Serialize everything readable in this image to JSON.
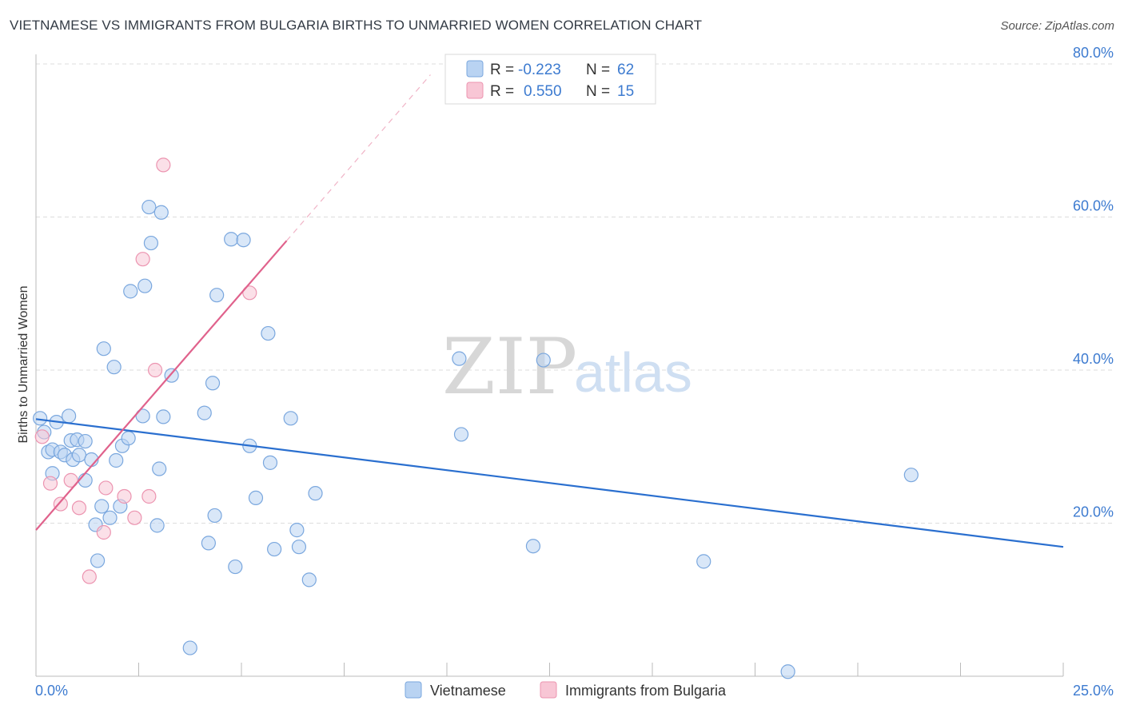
{
  "header": {
    "title": "VIETNAMESE VS IMMIGRANTS FROM BULGARIA BIRTHS TO UNMARRIED WOMEN CORRELATION CHART",
    "source": "Source: ZipAtlas.com"
  },
  "watermark": {
    "part1": "ZIP",
    "part2": "atlas"
  },
  "legend": {
    "r_label": "R =",
    "n_label": "N =",
    "rows": [
      {
        "r_value": "-0.223",
        "n_value": "62"
      },
      {
        "r_value": "0.550",
        "n_value": "15"
      }
    ]
  },
  "colors": {
    "vietnamese_fill": "#b9d3f2",
    "vietnamese_stroke": "#7aa7de",
    "vietnamese_line": "#2a6fcf",
    "bulgaria_fill": "#f8c6d5",
    "bulgaria_stroke": "#ec94b0",
    "bulgaria_line": "#e0628c",
    "grid": "#dddddd",
    "axis_text": "#3d7bd0"
  },
  "chart_data": {
    "type": "scatter",
    "title": "VIETNAMESE VS IMMIGRANTS FROM BULGARIA BIRTHS TO UNMARRIED WOMEN CORRELATION CHART",
    "xlabel": "",
    "ylabel": "Births to Unmarried Women",
    "xlim": [
      0,
      25
    ],
    "ylim": [
      0,
      80
    ],
    "x_tick_labels": [
      "0.0%",
      "25.0%"
    ],
    "y_ticks": [
      20,
      40,
      60,
      80
    ],
    "y_tick_labels": [
      "20.0%",
      "40.0%",
      "60.0%",
      "80.0%"
    ],
    "grid": true,
    "legend_position": "top-center",
    "series": [
      {
        "name": "Vietnamese",
        "r": -0.223,
        "n": 62,
        "trend": {
          "x0": 0,
          "y0": 33.6,
          "x1": 25,
          "y1": 16.9
        },
        "points": [
          [
            0.1,
            33.7
          ],
          [
            0.3,
            29.3
          ],
          [
            0.4,
            29.6
          ],
          [
            0.4,
            26.5
          ],
          [
            0.5,
            33.2
          ],
          [
            0.6,
            29.3
          ],
          [
            0.7,
            28.9
          ],
          [
            0.8,
            34.0
          ],
          [
            0.85,
            30.8
          ],
          [
            0.9,
            28.3
          ],
          [
            1.0,
            30.9
          ],
          [
            1.05,
            28.9
          ],
          [
            1.2,
            30.7
          ],
          [
            1.2,
            25.6
          ],
          [
            1.35,
            28.3
          ],
          [
            1.45,
            19.8
          ],
          [
            1.5,
            15.1
          ],
          [
            1.6,
            22.2
          ],
          [
            1.65,
            42.8
          ],
          [
            1.8,
            20.7
          ],
          [
            1.9,
            40.4
          ],
          [
            1.95,
            28.2
          ],
          [
            2.05,
            22.2
          ],
          [
            2.1,
            30.1
          ],
          [
            2.25,
            31.1
          ],
          [
            2.3,
            50.3
          ],
          [
            2.6,
            34.0
          ],
          [
            2.65,
            51.0
          ],
          [
            2.75,
            61.3
          ],
          [
            2.8,
            56.6
          ],
          [
            2.95,
            19.7
          ],
          [
            3.0,
            27.1
          ],
          [
            3.05,
            60.6
          ],
          [
            3.3,
            39.3
          ],
          [
            3.75,
            3.7
          ],
          [
            4.1,
            34.4
          ],
          [
            4.2,
            17.4
          ],
          [
            4.3,
            38.3
          ],
          [
            4.35,
            21.0
          ],
          [
            4.4,
            49.8
          ],
          [
            4.75,
            57.1
          ],
          [
            4.85,
            14.3
          ],
          [
            5.05,
            57.0
          ],
          [
            5.2,
            30.1
          ],
          [
            5.35,
            23.3
          ],
          [
            5.65,
            44.8
          ],
          [
            5.7,
            27.9
          ],
          [
            5.8,
            16.6
          ],
          [
            6.2,
            33.7
          ],
          [
            6.35,
            19.1
          ],
          [
            6.4,
            16.9
          ],
          [
            6.65,
            12.6
          ],
          [
            6.8,
            23.9
          ],
          [
            10.3,
            41.5
          ],
          [
            10.35,
            31.6
          ],
          [
            12.1,
            17.0
          ],
          [
            12.35,
            41.3
          ],
          [
            16.25,
            15.0
          ],
          [
            18.3,
            0.6
          ],
          [
            21.3,
            26.3
          ],
          [
            0.2,
            31.9
          ],
          [
            3.1,
            33.9
          ]
        ]
      },
      {
        "name": "Immigrants from Bulgaria",
        "r": 0.55,
        "n": 15,
        "trend": {
          "x0": 0,
          "y0": 19.1,
          "x1": 6.1,
          "y1": 56.9
        },
        "points": [
          [
            0.15,
            31.3
          ],
          [
            0.35,
            25.2
          ],
          [
            0.6,
            22.5
          ],
          [
            0.85,
            25.6
          ],
          [
            1.05,
            22.0
          ],
          [
            1.3,
            13.0
          ],
          [
            1.65,
            18.8
          ],
          [
            1.7,
            24.6
          ],
          [
            2.15,
            23.5
          ],
          [
            2.4,
            20.7
          ],
          [
            2.6,
            54.5
          ],
          [
            2.75,
            23.5
          ],
          [
            2.9,
            40.0
          ],
          [
            3.1,
            66.8
          ],
          [
            5.2,
            50.1
          ]
        ]
      }
    ]
  }
}
